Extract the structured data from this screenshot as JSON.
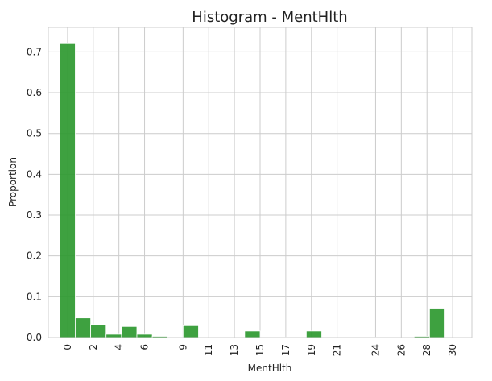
{
  "chart_data": {
    "type": "bar",
    "title": "Histogram - MentHlth",
    "xlabel": "MentHlth",
    "ylabel": "Proportion",
    "xlim": [
      -1.5,
      31.5
    ],
    "ylim": [
      0,
      0.76
    ],
    "x_ticks": [
      0,
      2,
      4,
      6,
      9,
      11,
      13,
      15,
      17,
      19,
      21,
      24,
      26,
      28,
      30
    ],
    "y_ticks": [
      0.0,
      0.1,
      0.2,
      0.3,
      0.4,
      0.5,
      0.6,
      0.7
    ],
    "y_tick_labels": [
      "0.0",
      "0.1",
      "0.2",
      "0.3",
      "0.4",
      "0.5",
      "0.6",
      "0.7"
    ],
    "bin_width": 1.2,
    "bins": [
      {
        "x": 0.0,
        "value": 0.72
      },
      {
        "x": 1.2,
        "value": 0.048
      },
      {
        "x": 2.4,
        "value": 0.032
      },
      {
        "x": 3.6,
        "value": 0.008
      },
      {
        "x": 4.8,
        "value": 0.027
      },
      {
        "x": 6.0,
        "value": 0.008
      },
      {
        "x": 7.2,
        "value": 0.003
      },
      {
        "x": 8.4,
        "value": 0.001
      },
      {
        "x": 9.6,
        "value": 0.029
      },
      {
        "x": 10.8,
        "value": 0.0
      },
      {
        "x": 12.0,
        "value": 0.001
      },
      {
        "x": 13.2,
        "value": 0.0
      },
      {
        "x": 14.4,
        "value": 0.016
      },
      {
        "x": 15.6,
        "value": 0.0
      },
      {
        "x": 16.8,
        "value": 0.001
      },
      {
        "x": 18.0,
        "value": 0.0
      },
      {
        "x": 19.2,
        "value": 0.016
      },
      {
        "x": 20.4,
        "value": 0.0
      },
      {
        "x": 21.6,
        "value": 0.0
      },
      {
        "x": 22.8,
        "value": 0.0
      },
      {
        "x": 24.0,
        "value": 0.001
      },
      {
        "x": 25.2,
        "value": 0.0
      },
      {
        "x": 26.4,
        "value": 0.0
      },
      {
        "x": 27.6,
        "value": 0.003
      },
      {
        "x": 28.8,
        "value": 0.072
      }
    ],
    "bar_color": "#2e9930",
    "bar_edge_color": "#ffffff",
    "grid": true,
    "legend": "none"
  }
}
